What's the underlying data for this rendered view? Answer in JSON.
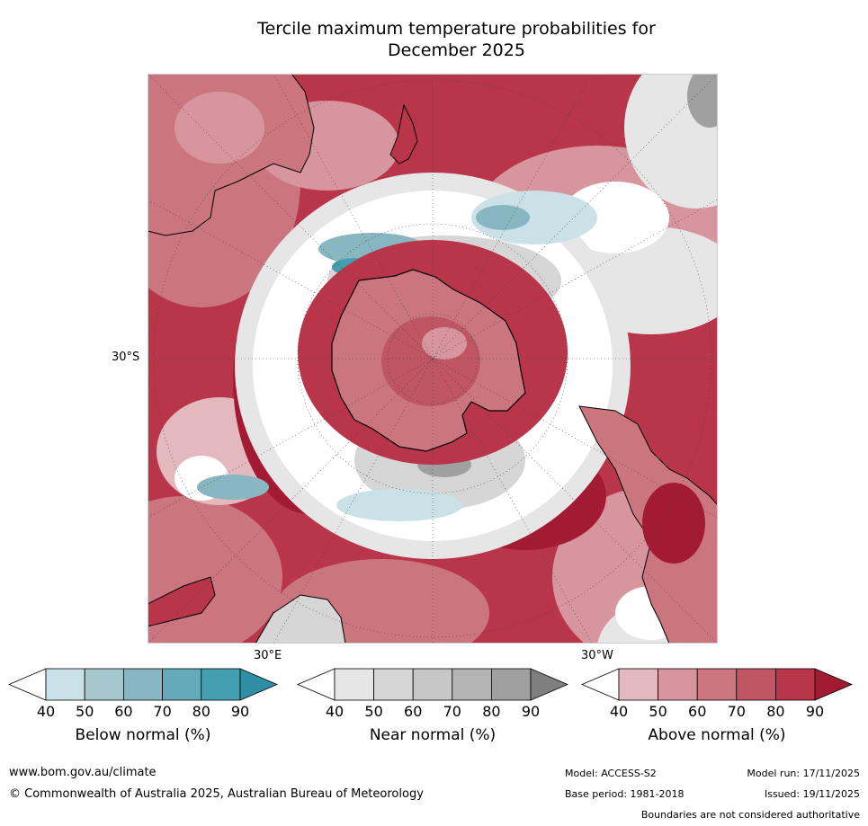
{
  "title": {
    "line1": "Tercile maximum temperature probabilities for",
    "line2": "December 2025"
  },
  "map": {
    "lat_label": "30°S",
    "lon_labels": [
      "30°E",
      "30°W"
    ]
  },
  "legends": [
    {
      "label": "Below normal (%)",
      "ticks": [
        "40",
        "50",
        "60",
        "70",
        "80",
        "90"
      ],
      "colors": [
        "#ffffff",
        "#c9e1e7",
        "#a7c7ce",
        "#88b6c1",
        "#66a9b8",
        "#44a0b0",
        "#2d8ea4"
      ]
    },
    {
      "label": "Near normal (%)",
      "ticks": [
        "40",
        "50",
        "60",
        "70",
        "80",
        "90"
      ],
      "colors": [
        "#ffffff",
        "#e6e6e6",
        "#d6d6d6",
        "#c7c7c7",
        "#b4b4b4",
        "#a0a0a0",
        "#7f7f7f"
      ]
    },
    {
      "label": "Above normal (%)",
      "ticks": [
        "40",
        "50",
        "60",
        "70",
        "80",
        "90"
      ],
      "colors": [
        "#ffffff",
        "#e3b9be",
        "#d7969d",
        "#cb767f",
        "#c05563",
        "#b9354a",
        "#a31a33"
      ]
    }
  ],
  "footer": {
    "website": "www.bom.gov.au/climate",
    "copyright": "© Commonwealth of Australia 2025, Australian Bureau of Meteorology",
    "model": "Model: ACCESS-S2",
    "base_period": "Base period: 1981-2018",
    "model_run": "Model run: 17/11/2025",
    "issued": "Issued: 19/11/2025",
    "disclaimer": "Boundaries are not considered authoritative"
  },
  "colors": {
    "ocean_red": "#b9354a",
    "mid_red": "#cb767f",
    "light_red": "#e3b9be",
    "deep_red": "#a31a33",
    "grey": "#d6d6d6",
    "dark_grey": "#a0a0a0",
    "teal": "#66a9b8",
    "light_teal": "#c9e1e7"
  }
}
